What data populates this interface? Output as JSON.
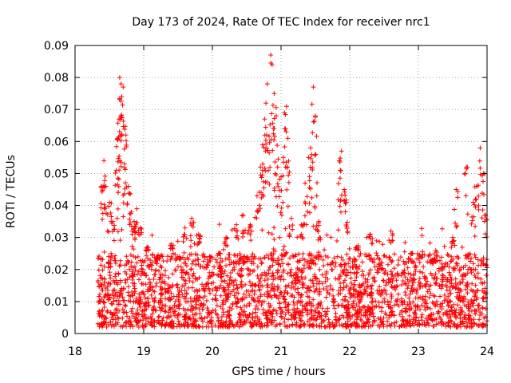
{
  "chart_data": {
    "type": "scatter",
    "title": "Day 173 of 2024, Rate Of TEC Index for receiver nrc1",
    "xlabel": "GPS time / hours",
    "ylabel": "ROTI / TECUs",
    "xlim": [
      18,
      24
    ],
    "ylim": [
      0,
      0.09
    ],
    "x_ticks": [
      "18",
      "19",
      "20",
      "21",
      "22",
      "23",
      "24"
    ],
    "y_ticks": [
      "0",
      "0.01",
      "0.02",
      "0.03",
      "0.04",
      "0.05",
      "0.06",
      "0.07",
      "0.08",
      "0.09"
    ],
    "grid": true,
    "marker": "+",
    "color": "#ff0000",
    "series": [
      {
        "name": "ROTI",
        "points": [
          [
            18.38,
            0.046
          ],
          [
            18.42,
            0.054
          ],
          [
            18.45,
            0.046
          ],
          [
            18.5,
            0.041
          ],
          [
            18.55,
            0.035
          ],
          [
            18.6,
            0.051
          ],
          [
            18.62,
            0.061
          ],
          [
            18.64,
            0.067
          ],
          [
            18.65,
            0.08
          ],
          [
            18.67,
            0.078
          ],
          [
            18.68,
            0.074
          ],
          [
            18.7,
            0.077
          ],
          [
            18.72,
            0.053
          ],
          [
            18.74,
            0.062
          ],
          [
            18.78,
            0.046
          ],
          [
            18.82,
            0.038
          ],
          [
            18.86,
            0.035
          ],
          [
            18.9,
            0.039
          ],
          [
            18.95,
            0.033
          ],
          [
            19.05,
            0.027
          ],
          [
            19.2,
            0.023
          ],
          [
            19.4,
            0.028
          ],
          [
            19.6,
            0.033
          ],
          [
            19.7,
            0.036
          ],
          [
            19.8,
            0.031
          ],
          [
            20.1,
            0.025
          ],
          [
            20.2,
            0.03
          ],
          [
            20.35,
            0.034
          ],
          [
            20.45,
            0.037
          ],
          [
            20.55,
            0.034
          ],
          [
            20.65,
            0.043
          ],
          [
            20.7,
            0.052
          ],
          [
            20.73,
            0.059
          ],
          [
            20.76,
            0.067
          ],
          [
            20.78,
            0.072
          ],
          [
            20.8,
            0.078
          ],
          [
            20.85,
            0.087
          ],
          [
            20.87,
            0.084
          ],
          [
            20.9,
            0.075
          ],
          [
            20.93,
            0.068
          ],
          [
            20.95,
            0.052
          ],
          [
            21.0,
            0.049
          ],
          [
            21.05,
            0.069
          ],
          [
            21.08,
            0.071
          ],
          [
            21.1,
            0.061
          ],
          [
            21.15,
            0.036
          ],
          [
            21.3,
            0.034
          ],
          [
            21.35,
            0.047
          ],
          [
            21.4,
            0.055
          ],
          [
            21.43,
            0.058
          ],
          [
            21.47,
            0.077
          ],
          [
            21.5,
            0.068
          ],
          [
            21.52,
            0.043
          ],
          [
            21.55,
            0.035
          ],
          [
            21.85,
            0.054
          ],
          [
            21.88,
            0.057
          ],
          [
            21.92,
            0.045
          ],
          [
            21.95,
            0.041
          ],
          [
            22.1,
            0.027
          ],
          [
            22.3,
            0.031
          ],
          [
            22.6,
            0.032
          ],
          [
            22.9,
            0.025
          ],
          [
            23.2,
            0.022
          ],
          [
            23.5,
            0.03
          ],
          [
            23.55,
            0.045
          ],
          [
            23.7,
            0.052
          ],
          [
            23.8,
            0.041
          ],
          [
            23.85,
            0.046
          ],
          [
            23.9,
            0.058
          ],
          [
            23.95,
            0.05
          ],
          [
            23.98,
            0.037
          ]
        ]
      }
    ],
    "band": {
      "x_start": 18.33,
      "x_end": 24.0,
      "y_min": 0.002,
      "y_typical_max": 0.025,
      "point_count": 2600
    }
  }
}
